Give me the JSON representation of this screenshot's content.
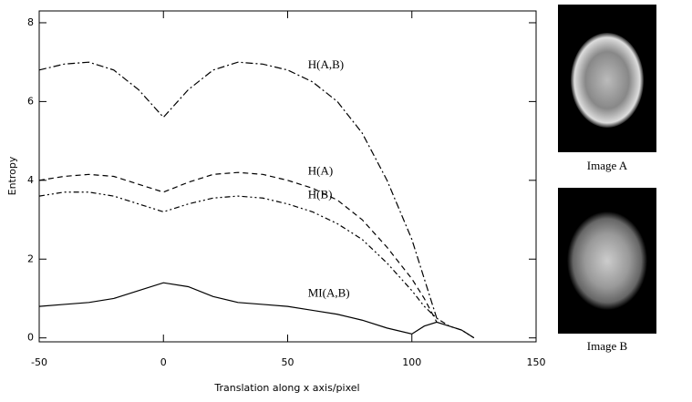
{
  "chart_data": {
    "type": "line",
    "xlabel": "Translation along x axis/pixel",
    "ylabel": "Entropy",
    "x": [
      -50,
      -40,
      -30,
      -20,
      -10,
      0,
      10,
      20,
      30,
      40,
      50,
      60,
      70,
      80,
      90,
      100,
      105,
      110,
      115,
      120,
      125
    ],
    "series": [
      {
        "name": "H(A,B)",
        "color": "#000000",
        "style": "dash-dot",
        "values": [
          6.8,
          6.95,
          7.0,
          6.8,
          6.3,
          5.6,
          6.3,
          6.8,
          7.0,
          6.95,
          6.8,
          6.5,
          6.0,
          5.2,
          4.0,
          2.5,
          1.5,
          0.5,
          null,
          null,
          null
        ]
      },
      {
        "name": "H(A)",
        "color": "#000000",
        "style": "dash",
        "values": [
          4.0,
          4.1,
          4.15,
          4.1,
          3.9,
          3.7,
          3.95,
          4.15,
          4.2,
          4.15,
          4.0,
          3.8,
          3.5,
          3.0,
          2.3,
          1.5,
          1.0,
          0.4,
          null,
          null,
          null
        ]
      },
      {
        "name": "H(B)",
        "color": "#000000",
        "style": "dash-dot-dot",
        "values": [
          3.6,
          3.7,
          3.7,
          3.6,
          3.4,
          3.2,
          3.4,
          3.55,
          3.6,
          3.55,
          3.4,
          3.2,
          2.9,
          2.5,
          1.9,
          1.2,
          0.8,
          0.5,
          0.3,
          0.2,
          0.0
        ]
      },
      {
        "name": "MI(A,B)",
        "color": "#000000",
        "style": "solid",
        "values": [
          0.8,
          0.85,
          0.9,
          1.0,
          1.2,
          1.4,
          1.3,
          1.05,
          0.9,
          0.85,
          0.8,
          0.7,
          0.6,
          0.45,
          0.25,
          0.1,
          0.3,
          0.4,
          0.3,
          0.2,
          0.0
        ]
      }
    ],
    "xlim": [
      -50,
      150
    ],
    "ylim": [
      -0.1,
      8.3
    ],
    "xticks": [
      -50,
      0,
      50,
      100,
      150
    ],
    "yticks": [
      0,
      2,
      4,
      6,
      8
    ]
  },
  "images": [
    {
      "caption": "Image A"
    },
    {
      "caption": "Image B"
    }
  ]
}
